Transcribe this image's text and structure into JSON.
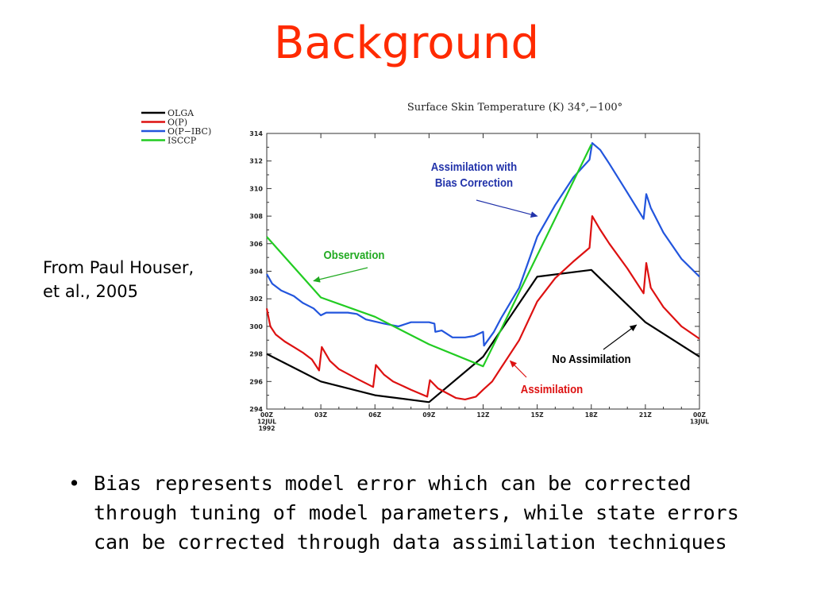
{
  "slide": {
    "title": "Background",
    "citation_lines": [
      "From Paul Houser,",
      "et al., 2005"
    ],
    "bullets": [
      "Bias represents model error which can be corrected through tuning of model parameters, while state errors can be corrected through data assimilation techniques"
    ]
  },
  "chart_data": {
    "type": "line",
    "title": "Surface Skin Temperature (K) 34°,−100°",
    "xlabel": "",
    "ylabel": "",
    "x_unit": "hours from 00Z 12JUL 1992",
    "xlim": [
      0,
      24
    ],
    "ylim": [
      294,
      314
    ],
    "y_ticks": [
      294,
      296,
      298,
      300,
      302,
      304,
      306,
      308,
      310,
      312,
      314
    ],
    "x_ticks": [
      {
        "x": 0,
        "lines": [
          "00Z",
          "12JUL",
          "1992"
        ]
      },
      {
        "x": 3,
        "lines": [
          "03Z"
        ]
      },
      {
        "x": 6,
        "lines": [
          "06Z"
        ]
      },
      {
        "x": 9,
        "lines": [
          "09Z"
        ]
      },
      {
        "x": 12,
        "lines": [
          "12Z"
        ]
      },
      {
        "x": 15,
        "lines": [
          "15Z"
        ]
      },
      {
        "x": 18,
        "lines": [
          "18Z"
        ]
      },
      {
        "x": 21,
        "lines": [
          "21Z"
        ]
      },
      {
        "x": 24,
        "lines": [
          "00Z",
          "13JUL"
        ]
      }
    ],
    "grid": false,
    "legend_position": "top-left outside",
    "series": [
      {
        "name": "OLGA",
        "color": "#000000",
        "points": [
          [
            0,
            298
          ],
          [
            3,
            296
          ],
          [
            6,
            295
          ],
          [
            9,
            294.5
          ],
          [
            12,
            297.8
          ],
          [
            15,
            303.6
          ],
          [
            18,
            304.1
          ],
          [
            21,
            300.3
          ],
          [
            24,
            297.8
          ]
        ]
      },
      {
        "name": "O(P)",
        "color": "#dd1111",
        "points": [
          [
            0,
            301.3
          ],
          [
            0.2,
            300
          ],
          [
            0.5,
            299.4
          ],
          [
            1,
            298.9
          ],
          [
            1.5,
            298.5
          ],
          [
            2,
            298.1
          ],
          [
            2.5,
            297.6
          ],
          [
            2.9,
            296.8
          ],
          [
            3.05,
            298.5
          ],
          [
            3.5,
            297.5
          ],
          [
            4,
            296.9
          ],
          [
            5,
            296.2
          ],
          [
            5.9,
            295.6
          ],
          [
            6.05,
            297.2
          ],
          [
            6.5,
            296.5
          ],
          [
            7,
            296
          ],
          [
            8,
            295.4
          ],
          [
            8.9,
            294.9
          ],
          [
            9.05,
            296.1
          ],
          [
            9.5,
            295.5
          ],
          [
            10.5,
            294.8
          ],
          [
            11,
            294.7
          ],
          [
            11.6,
            294.9
          ],
          [
            12,
            295.4
          ],
          [
            12.5,
            296
          ],
          [
            13,
            297
          ],
          [
            14,
            299
          ],
          [
            15,
            301.8
          ],
          [
            16,
            303.5
          ],
          [
            17,
            304.7
          ],
          [
            17.9,
            305.7
          ],
          [
            18.05,
            308
          ],
          [
            18.5,
            307
          ],
          [
            19,
            306
          ],
          [
            20,
            304.2
          ],
          [
            20.9,
            302.4
          ],
          [
            21.05,
            304.6
          ],
          [
            21.3,
            302.8
          ],
          [
            22,
            301.4
          ],
          [
            23,
            300
          ],
          [
            24,
            299.1
          ]
        ]
      },
      {
        "name": "O(P−IBC)",
        "color": "#2255dd",
        "points": [
          [
            0,
            303.8
          ],
          [
            0.3,
            303.1
          ],
          [
            0.8,
            302.6
          ],
          [
            1.5,
            302.2
          ],
          [
            2,
            301.7
          ],
          [
            2.6,
            301.3
          ],
          [
            3,
            300.8
          ],
          [
            3.3,
            301
          ],
          [
            4.5,
            301
          ],
          [
            5,
            300.9
          ],
          [
            5.5,
            300.5
          ],
          [
            6.5,
            300.2
          ],
          [
            7.3,
            300
          ],
          [
            8,
            300.3
          ],
          [
            9,
            300.3
          ],
          [
            9.3,
            300.2
          ],
          [
            9.35,
            299.6
          ],
          [
            9.7,
            299.7
          ],
          [
            10.3,
            299.2
          ],
          [
            11,
            299.2
          ],
          [
            11.5,
            299.3
          ],
          [
            12,
            299.6
          ],
          [
            12.05,
            298.6
          ],
          [
            12.6,
            299.6
          ],
          [
            13,
            300.6
          ],
          [
            14,
            302.8
          ],
          [
            15,
            306.5
          ],
          [
            16,
            308.8
          ],
          [
            17,
            310.8
          ],
          [
            17.9,
            312.1
          ],
          [
            18.05,
            313.3
          ],
          [
            18.5,
            312.8
          ],
          [
            19,
            311.8
          ],
          [
            20,
            309.7
          ],
          [
            20.9,
            307.8
          ],
          [
            21.05,
            309.6
          ],
          [
            21.3,
            308.6
          ],
          [
            22,
            306.8
          ],
          [
            23,
            304.9
          ],
          [
            24,
            303.6
          ]
        ]
      },
      {
        "name": "ISCCP",
        "color": "#22cc22",
        "points": [
          [
            0,
            306.5
          ],
          [
            3,
            302.1
          ],
          [
            6,
            300.7
          ],
          [
            9,
            298.7
          ],
          [
            12,
            297.1
          ],
          [
            18,
            313.2
          ]
        ]
      }
    ],
    "annotations": [
      {
        "text_lines": [
          "Assimilation with",
          "Bias Correction"
        ],
        "color": "#2233aa",
        "target": [
          15,
          308
        ]
      },
      {
        "text_lines": [
          "Observation"
        ],
        "color": "#22aa22",
        "target": [
          2.6,
          303.3
        ]
      },
      {
        "text_lines": [
          "No Assimilation"
        ],
        "color": "#000000",
        "target": [
          20.5,
          300.1
        ]
      },
      {
        "text_lines": [
          "Assimilation"
        ],
        "color": "#dd1111",
        "target": [
          13.5,
          297.5
        ]
      }
    ]
  }
}
